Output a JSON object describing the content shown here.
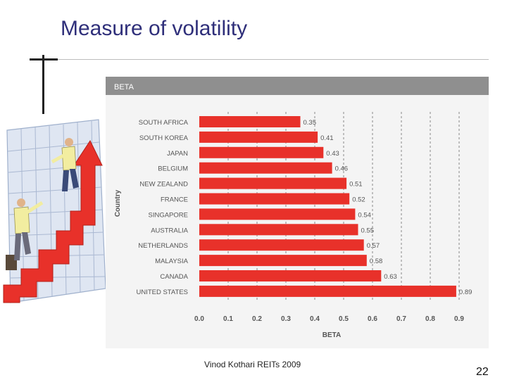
{
  "slide": {
    "title": "Measure of volatility",
    "footer": "Vinod Kothari REITs 2009",
    "page_number": "22"
  },
  "colors": {
    "bar": "#e8312a",
    "header": "#8f8f8f",
    "title": "#2f2f7a"
  },
  "illustration": {
    "subject": "businessmen climbing red arrow staircase"
  },
  "chart_data": {
    "type": "bar",
    "orientation": "horizontal",
    "header": "BETA",
    "title": "BETA",
    "xlabel": "BETA",
    "ylabel": "Country",
    "categories": [
      "SOUTH AFRICA",
      "SOUTH KOREA",
      "JAPAN",
      "BELGIUM",
      "NEW ZEALAND",
      "FRANCE",
      "SINGAPORE",
      "AUSTRALIA",
      "NETHERLANDS",
      "MALAYSIA",
      "CANADA",
      "UNITED STATES"
    ],
    "values": [
      0.35,
      0.41,
      0.43,
      0.46,
      0.51,
      0.52,
      0.54,
      0.55,
      0.57,
      0.58,
      0.63,
      0.89
    ],
    "data_labels": [
      "0.35",
      "0.41",
      "0.43",
      "0.46",
      "0.51",
      "0.52",
      "0.54",
      "0.55",
      "0.57",
      "0.58",
      "0.63",
      "0.89"
    ],
    "xlim": [
      0,
      0.9
    ],
    "xticks": [
      "0.0",
      "0.1",
      "0.2",
      "0.3",
      "0.4",
      "0.5",
      "0.6",
      "0.7",
      "0.8",
      "0.9"
    ],
    "grid": "vertical dashed"
  }
}
